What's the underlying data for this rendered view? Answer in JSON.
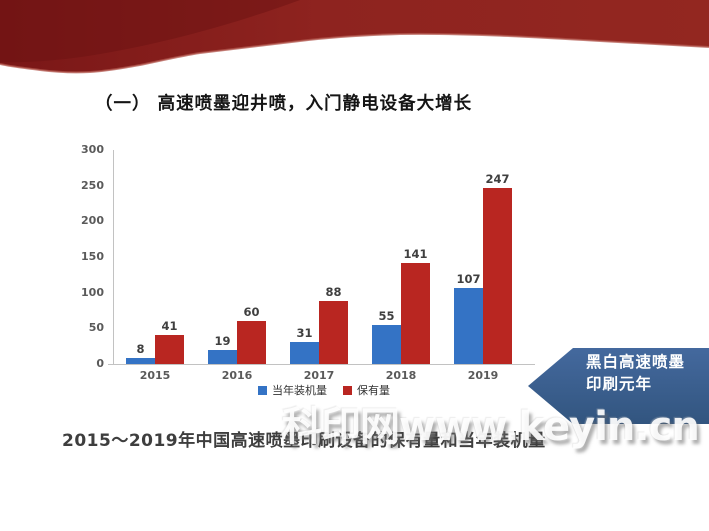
{
  "slide": {
    "title": "（一） 高速喷墨迎井喷，入门静电设备大增长",
    "caption": "2015～2019年中国高速喷墨印刷设备的保有量和当年装机量",
    "callout": {
      "line1": "黑白高速喷墨",
      "line2": "印刷元年",
      "color": "#3a6198"
    },
    "watermark": "科印网www.keyin.cn"
  },
  "colors": {
    "ribbon_red_dark": "#6b1212",
    "ribbon_red": "#8e231f",
    "bar_blue": "#3473c5",
    "bar_red": "#b92621",
    "axis_gray": "#c2c2c2",
    "label_gray": "#5a5a5a"
  },
  "chart_data": {
    "type": "bar",
    "title": "",
    "xlabel": "",
    "ylabel": "",
    "categories": [
      "2015",
      "2016",
      "2017",
      "2018",
      "2019"
    ],
    "series": [
      {
        "name": "当年装机量",
        "color": "#3473c5",
        "values": [
          8,
          19,
          31,
          55,
          107
        ]
      },
      {
        "name": "保有量",
        "color": "#b92621",
        "values": [
          41,
          60,
          88,
          141,
          247
        ]
      }
    ],
    "ylim": [
      0,
      300
    ],
    "yticks": [
      0,
      50,
      100,
      150,
      200,
      250,
      300
    ],
    "grid": false,
    "legend_position": "bottom"
  }
}
